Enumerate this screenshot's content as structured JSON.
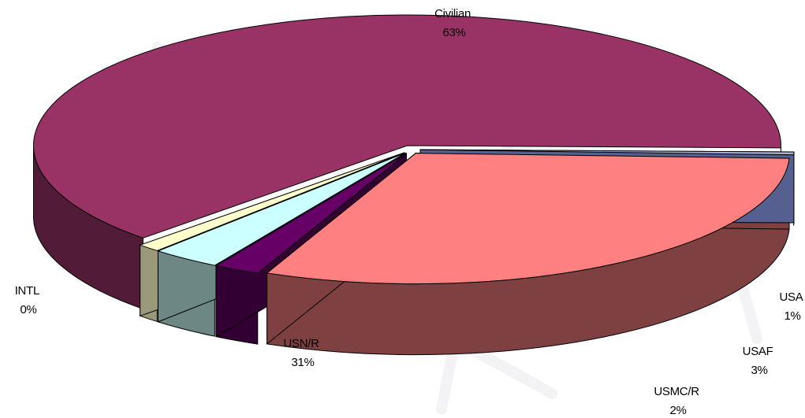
{
  "chart_data": {
    "type": "pie",
    "style": "3d exploded",
    "title": "",
    "legend": "none",
    "slices": [
      {
        "label": "Civilian",
        "value_label": "63%",
        "value": 63,
        "top_color": "#993366",
        "side_color": "#521b38"
      },
      {
        "label": "USA",
        "value_label": "1%",
        "value": 1,
        "top_color": "#ffffcc",
        "side_color": "#9a9a7a"
      },
      {
        "label": "USAF",
        "value_label": "3%",
        "value": 3,
        "top_color": "#ccffff",
        "side_color": "#6d8785"
      },
      {
        "label": "USMC/R",
        "value_label": "2%",
        "value": 2,
        "top_color": "#660066",
        "side_color": "#330033"
      },
      {
        "label": "USN/R",
        "value_label": "31%",
        "value": 31,
        "top_color": "#ff8080",
        "side_color": "#7e4040"
      },
      {
        "label": "INTL",
        "value_label": "0%",
        "value": 0.35,
        "top_color": "#a8b0e0",
        "side_color": "#556090"
      }
    ]
  }
}
